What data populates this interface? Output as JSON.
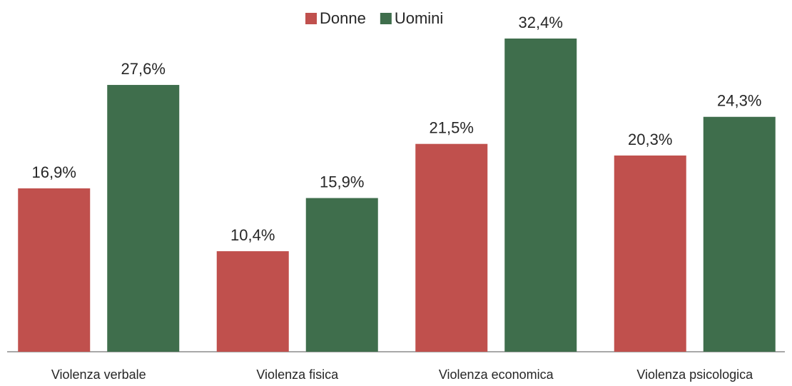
{
  "chart_data": {
    "type": "bar",
    "categories": [
      "Violenza verbale",
      "Violenza fisica",
      "Violenza economica",
      "Violenza psicologica"
    ],
    "series": [
      {
        "name": "Donne",
        "color": "#c0504d",
        "values": [
          16.9,
          10.4,
          21.5,
          20.3
        ],
        "value_labels": [
          "16,9%",
          "10,4%",
          "21,5%",
          "20,3%"
        ]
      },
      {
        "name": "Uomini",
        "color": "#3f6e4c",
        "values": [
          27.6,
          15.9,
          32.4,
          24.3
        ],
        "value_labels": [
          "27,6%",
          "15,9%",
          "32,4%",
          "24,3%"
        ]
      }
    ],
    "legend": "top"
  }
}
